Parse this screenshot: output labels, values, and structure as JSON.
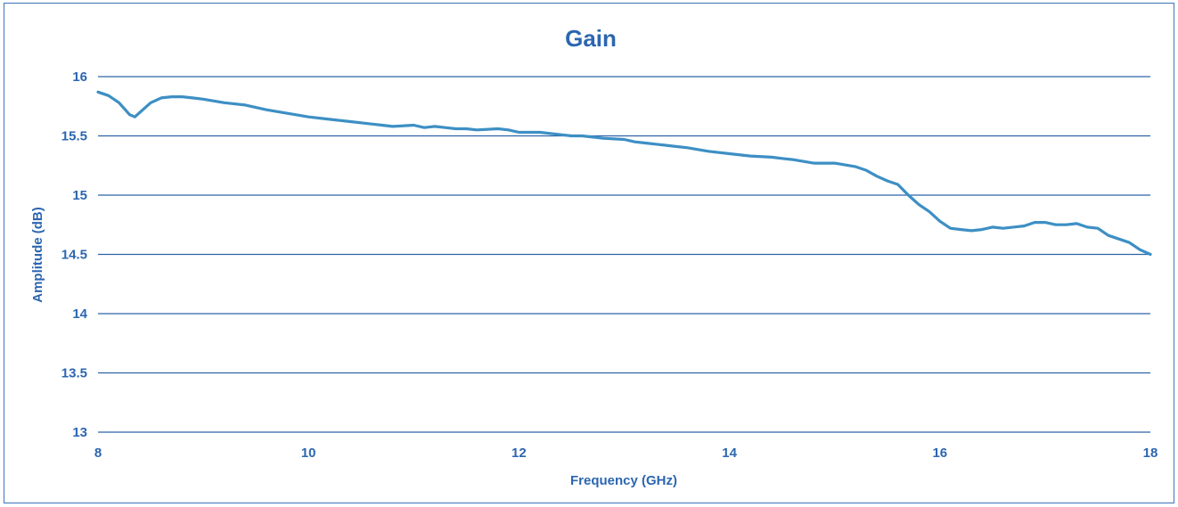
{
  "colors": {
    "text": "#2c66b0",
    "grid": "#2e63a7",
    "line": "#3d8fc4",
    "frame": "#3b73b9"
  },
  "chart_data": {
    "type": "line",
    "title": "Gain",
    "xlabel": "Frequency (GHz)",
    "ylabel": "Amplitude (dB)",
    "xlim": [
      8,
      18
    ],
    "ylim": [
      13,
      16
    ],
    "xticks": [
      8,
      10,
      12,
      14,
      16,
      18
    ],
    "yticks": [
      13,
      13.5,
      14,
      14.5,
      15,
      15.5,
      16
    ],
    "xtick_labels": [
      "8",
      "10",
      "12",
      "14",
      "16",
      "18"
    ],
    "ytick_labels": [
      "13",
      "13.5",
      "14",
      "14.5",
      "15",
      "15.5",
      "16"
    ],
    "grid": "horizontal",
    "series": [
      {
        "x": [
          8.0,
          8.1,
          8.2,
          8.3,
          8.35,
          8.4,
          8.5,
          8.6,
          8.7,
          8.8,
          8.9,
          9.0,
          9.2,
          9.4,
          9.6,
          9.8,
          10.0,
          10.2,
          10.4,
          10.6,
          10.7,
          10.8,
          11.0,
          11.1,
          11.2,
          11.3,
          11.4,
          11.5,
          11.6,
          11.8,
          11.9,
          12.0,
          12.1,
          12.2,
          12.3,
          12.4,
          12.5,
          12.6,
          12.8,
          13.0,
          13.1,
          13.2,
          13.3,
          13.4,
          13.5,
          13.6,
          13.8,
          14.0,
          14.2,
          14.4,
          14.5,
          14.6,
          14.8,
          15.0,
          15.2,
          15.3,
          15.4,
          15.5,
          15.6,
          15.7,
          15.8,
          15.9,
          16.0,
          16.1,
          16.2,
          16.3,
          16.4,
          16.5,
          16.6,
          16.8,
          16.9,
          17.0,
          17.1,
          17.2,
          17.3,
          17.4,
          17.5,
          17.6,
          17.7,
          17.8,
          17.9,
          18.0
        ],
        "values": [
          15.87,
          15.84,
          15.78,
          15.68,
          15.66,
          15.7,
          15.78,
          15.82,
          15.83,
          15.83,
          15.82,
          15.81,
          15.78,
          15.76,
          15.72,
          15.69,
          15.66,
          15.64,
          15.62,
          15.6,
          15.59,
          15.58,
          15.59,
          15.57,
          15.58,
          15.57,
          15.56,
          15.56,
          15.55,
          15.56,
          15.55,
          15.53,
          15.53,
          15.53,
          15.52,
          15.51,
          15.5,
          15.5,
          15.48,
          15.47,
          15.45,
          15.44,
          15.43,
          15.42,
          15.41,
          15.4,
          15.37,
          15.35,
          15.33,
          15.32,
          15.31,
          15.3,
          15.27,
          15.27,
          15.24,
          15.21,
          15.16,
          15.12,
          15.09,
          15.0,
          14.92,
          14.86,
          14.78,
          14.72,
          14.71,
          14.7,
          14.71,
          14.73,
          14.72,
          14.74,
          14.77,
          14.77,
          14.75,
          14.75,
          14.76,
          14.73,
          14.72,
          14.66,
          14.63,
          14.6,
          14.54,
          14.5
        ]
      }
    ]
  }
}
